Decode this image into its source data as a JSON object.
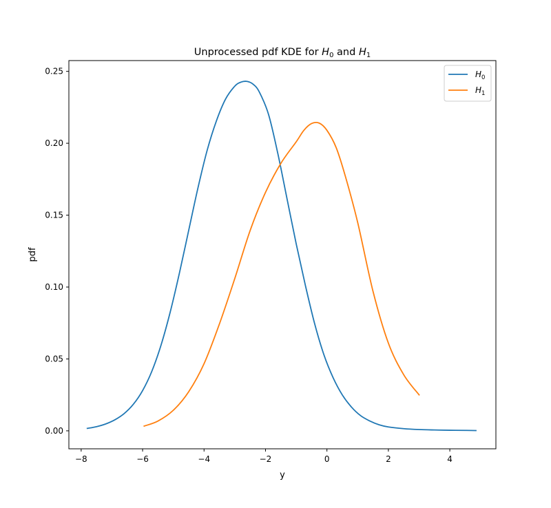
{
  "chart_data": {
    "type": "line",
    "title": "Unprocessed pdf KDE for H0 and H1",
    "title_parts": {
      "prefix": "Unprocessed pdf KDE for ",
      "sym_a": "H",
      "sub_a": "0",
      "mid": " and ",
      "sym_b": "H",
      "sub_b": "1"
    },
    "xlabel": "y",
    "ylabel": "pdf",
    "xlim": [
      -8.4,
      5.5
    ],
    "ylim": [
      -0.0125,
      0.2575
    ],
    "xticks": [
      -8,
      -6,
      -4,
      -2,
      0,
      2,
      4
    ],
    "xtick_labels": [
      "−8",
      "−6",
      "−4",
      "−2",
      "0",
      "2",
      "4"
    ],
    "yticks": [
      0.0,
      0.05,
      0.1,
      0.15,
      0.2,
      0.25
    ],
    "ytick_labels": [
      "0.00",
      "0.05",
      "0.10",
      "0.15",
      "0.20",
      "0.25"
    ],
    "grid": false,
    "legend_position": "top-right",
    "series": [
      {
        "name": "H0",
        "legend_symbol": "H",
        "legend_sub": "0",
        "color": "#1f77b4",
        "x": [
          -7.8,
          -7.5,
          -7.2,
          -6.9,
          -6.6,
          -6.3,
          -6.0,
          -5.7,
          -5.4,
          -5.1,
          -4.8,
          -4.5,
          -4.2,
          -3.9,
          -3.6,
          -3.3,
          -3.0,
          -2.8,
          -2.6,
          -2.4,
          -2.2,
          -1.9,
          -1.6,
          -1.3,
          -1.0,
          -0.7,
          -0.4,
          -0.1,
          0.2,
          0.5,
          0.8,
          1.1,
          1.4,
          1.7,
          2.0,
          2.5,
          3.0,
          3.5,
          4.0,
          4.5,
          4.85
        ],
        "y": [
          0.0017,
          0.0029,
          0.0048,
          0.0077,
          0.012,
          0.0185,
          0.028,
          0.0414,
          0.0596,
          0.0827,
          0.1099,
          0.1394,
          0.1688,
          0.195,
          0.2154,
          0.2307,
          0.2397,
          0.2425,
          0.243,
          0.241,
          0.2356,
          0.22,
          0.193,
          0.1615,
          0.13,
          0.101,
          0.0745,
          0.053,
          0.037,
          0.025,
          0.0165,
          0.0105,
          0.0068,
          0.0042,
          0.0027,
          0.0015,
          0.0009,
          0.0006,
          0.0004,
          0.0003,
          0.0002
        ]
      },
      {
        "name": "H1",
        "legend_symbol": "H",
        "legend_sub": "1",
        "color": "#ff7f0e",
        "x": [
          -5.95,
          -5.5,
          -5.0,
          -4.5,
          -4.0,
          -3.5,
          -3.0,
          -2.5,
          -2.0,
          -1.5,
          -1.0,
          -0.75,
          -0.5,
          -0.25,
          0.0,
          0.3,
          0.6,
          1.0,
          1.5,
          2.0,
          2.5,
          3.0
        ],
        "y": [
          0.0033,
          0.0068,
          0.0143,
          0.0272,
          0.0467,
          0.0743,
          0.1059,
          0.1393,
          0.1658,
          0.186,
          0.201,
          0.209,
          0.2137,
          0.214,
          0.209,
          0.197,
          0.177,
          0.145,
          0.097,
          0.061,
          0.039,
          0.025
        ]
      }
    ]
  }
}
